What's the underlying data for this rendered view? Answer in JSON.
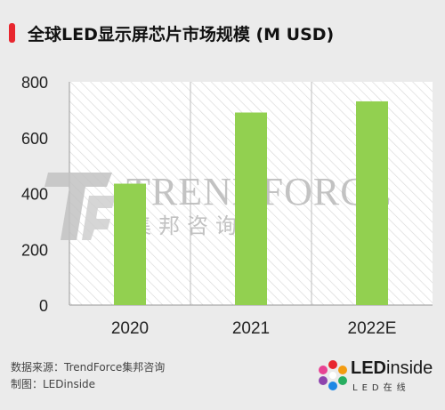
{
  "title": "全球LED显示屏芯片市场规模 (M USD)",
  "source_text": "数据来源：TrendForce集邦咨询",
  "credit_text": "制图：LEDinside",
  "watermark": {
    "brand_en": "TRENDFORCE",
    "brand_cn": "集邦咨询"
  },
  "logo": {
    "brand_prefix": "LED",
    "brand_suffix": "inside",
    "tagline": "LED在线"
  },
  "colors": {
    "bar": "#92d050",
    "accent": "#e8262e",
    "background": "#ebebeb",
    "plot_background": "#ffffff"
  },
  "chart_data": {
    "type": "bar",
    "title": "全球LED显示屏芯片市场规模 (M USD)",
    "categories": [
      "2020",
      "2021",
      "2022E"
    ],
    "values": [
      435,
      690,
      730
    ],
    "ylim": [
      0,
      800
    ],
    "yticks": [
      0,
      200,
      400,
      600,
      800
    ],
    "xlabel": "",
    "ylabel": "",
    "grid": false,
    "legend": "none"
  }
}
